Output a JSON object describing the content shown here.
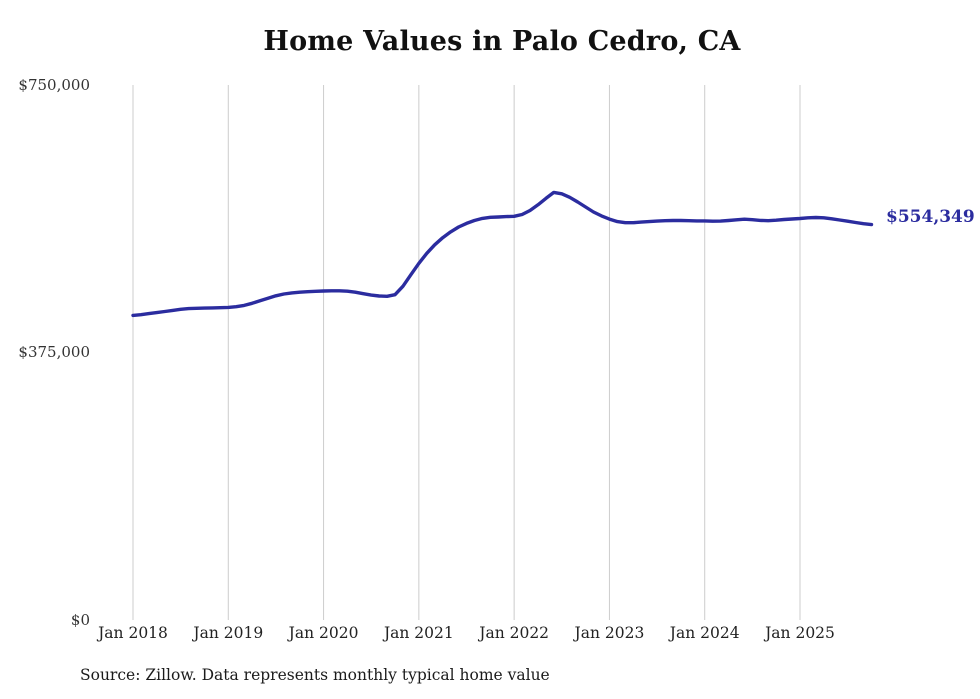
{
  "chart_data": {
    "type": "line",
    "title": "Home Values in Palo Cedro, CA",
    "xlabel": "",
    "ylabel": "",
    "ylim": [
      0,
      750000
    ],
    "grid": "vertical-only",
    "legend": "none",
    "line_color": "#2b2c9f",
    "grid_color": "#cccccc",
    "end_label": "$554,349",
    "latest_value": 554349,
    "source_note": "Source: Zillow. Data represents monthly typical home value",
    "y_ticks": [
      {
        "label": "$750,000",
        "value": 750000
      },
      {
        "label": "$375,000",
        "value": 375000
      },
      {
        "label": "$0",
        "value": 0
      }
    ],
    "x_ticks": [
      "Jan 2018",
      "Jan 2019",
      "Jan 2020",
      "Jan 2021",
      "Jan 2022",
      "Jan 2023",
      "Jan 2024",
      "Jan 2025"
    ],
    "series": [
      {
        "name": "Monthly typical home value",
        "start_month": "2018-01",
        "interval": "monthly",
        "values": [
          427000,
          428000,
          429500,
          431000,
          432500,
          434000,
          435500,
          436500,
          437000,
          437200,
          437500,
          437800,
          438200,
          439200,
          441000,
          444000,
          447500,
          451000,
          454500,
          457000,
          458500,
          459500,
          460200,
          460800,
          461200,
          461500,
          461500,
          461000,
          459500,
          457500,
          455500,
          454200,
          453800,
          456000,
          468000,
          484000,
          500000,
          514000,
          526000,
          536000,
          544000,
          551000,
          556000,
          560000,
          563000,
          564500,
          565000,
          565500,
          566000,
          568500,
          574000,
          582000,
          591000,
          599500,
          597500,
          592500,
          586000,
          579000,
          572000,
          566500,
          562000,
          558500,
          557000,
          557000,
          557800,
          558500,
          559200,
          559800,
          560000,
          560000,
          559800,
          559500,
          559500,
          559000,
          559200,
          560000,
          561000,
          561800,
          561200,
          560200,
          559800,
          560500,
          561500,
          562200,
          562800,
          563800,
          564200,
          563800,
          562500,
          560800,
          559000,
          557200,
          555600,
          554349
        ]
      }
    ]
  }
}
